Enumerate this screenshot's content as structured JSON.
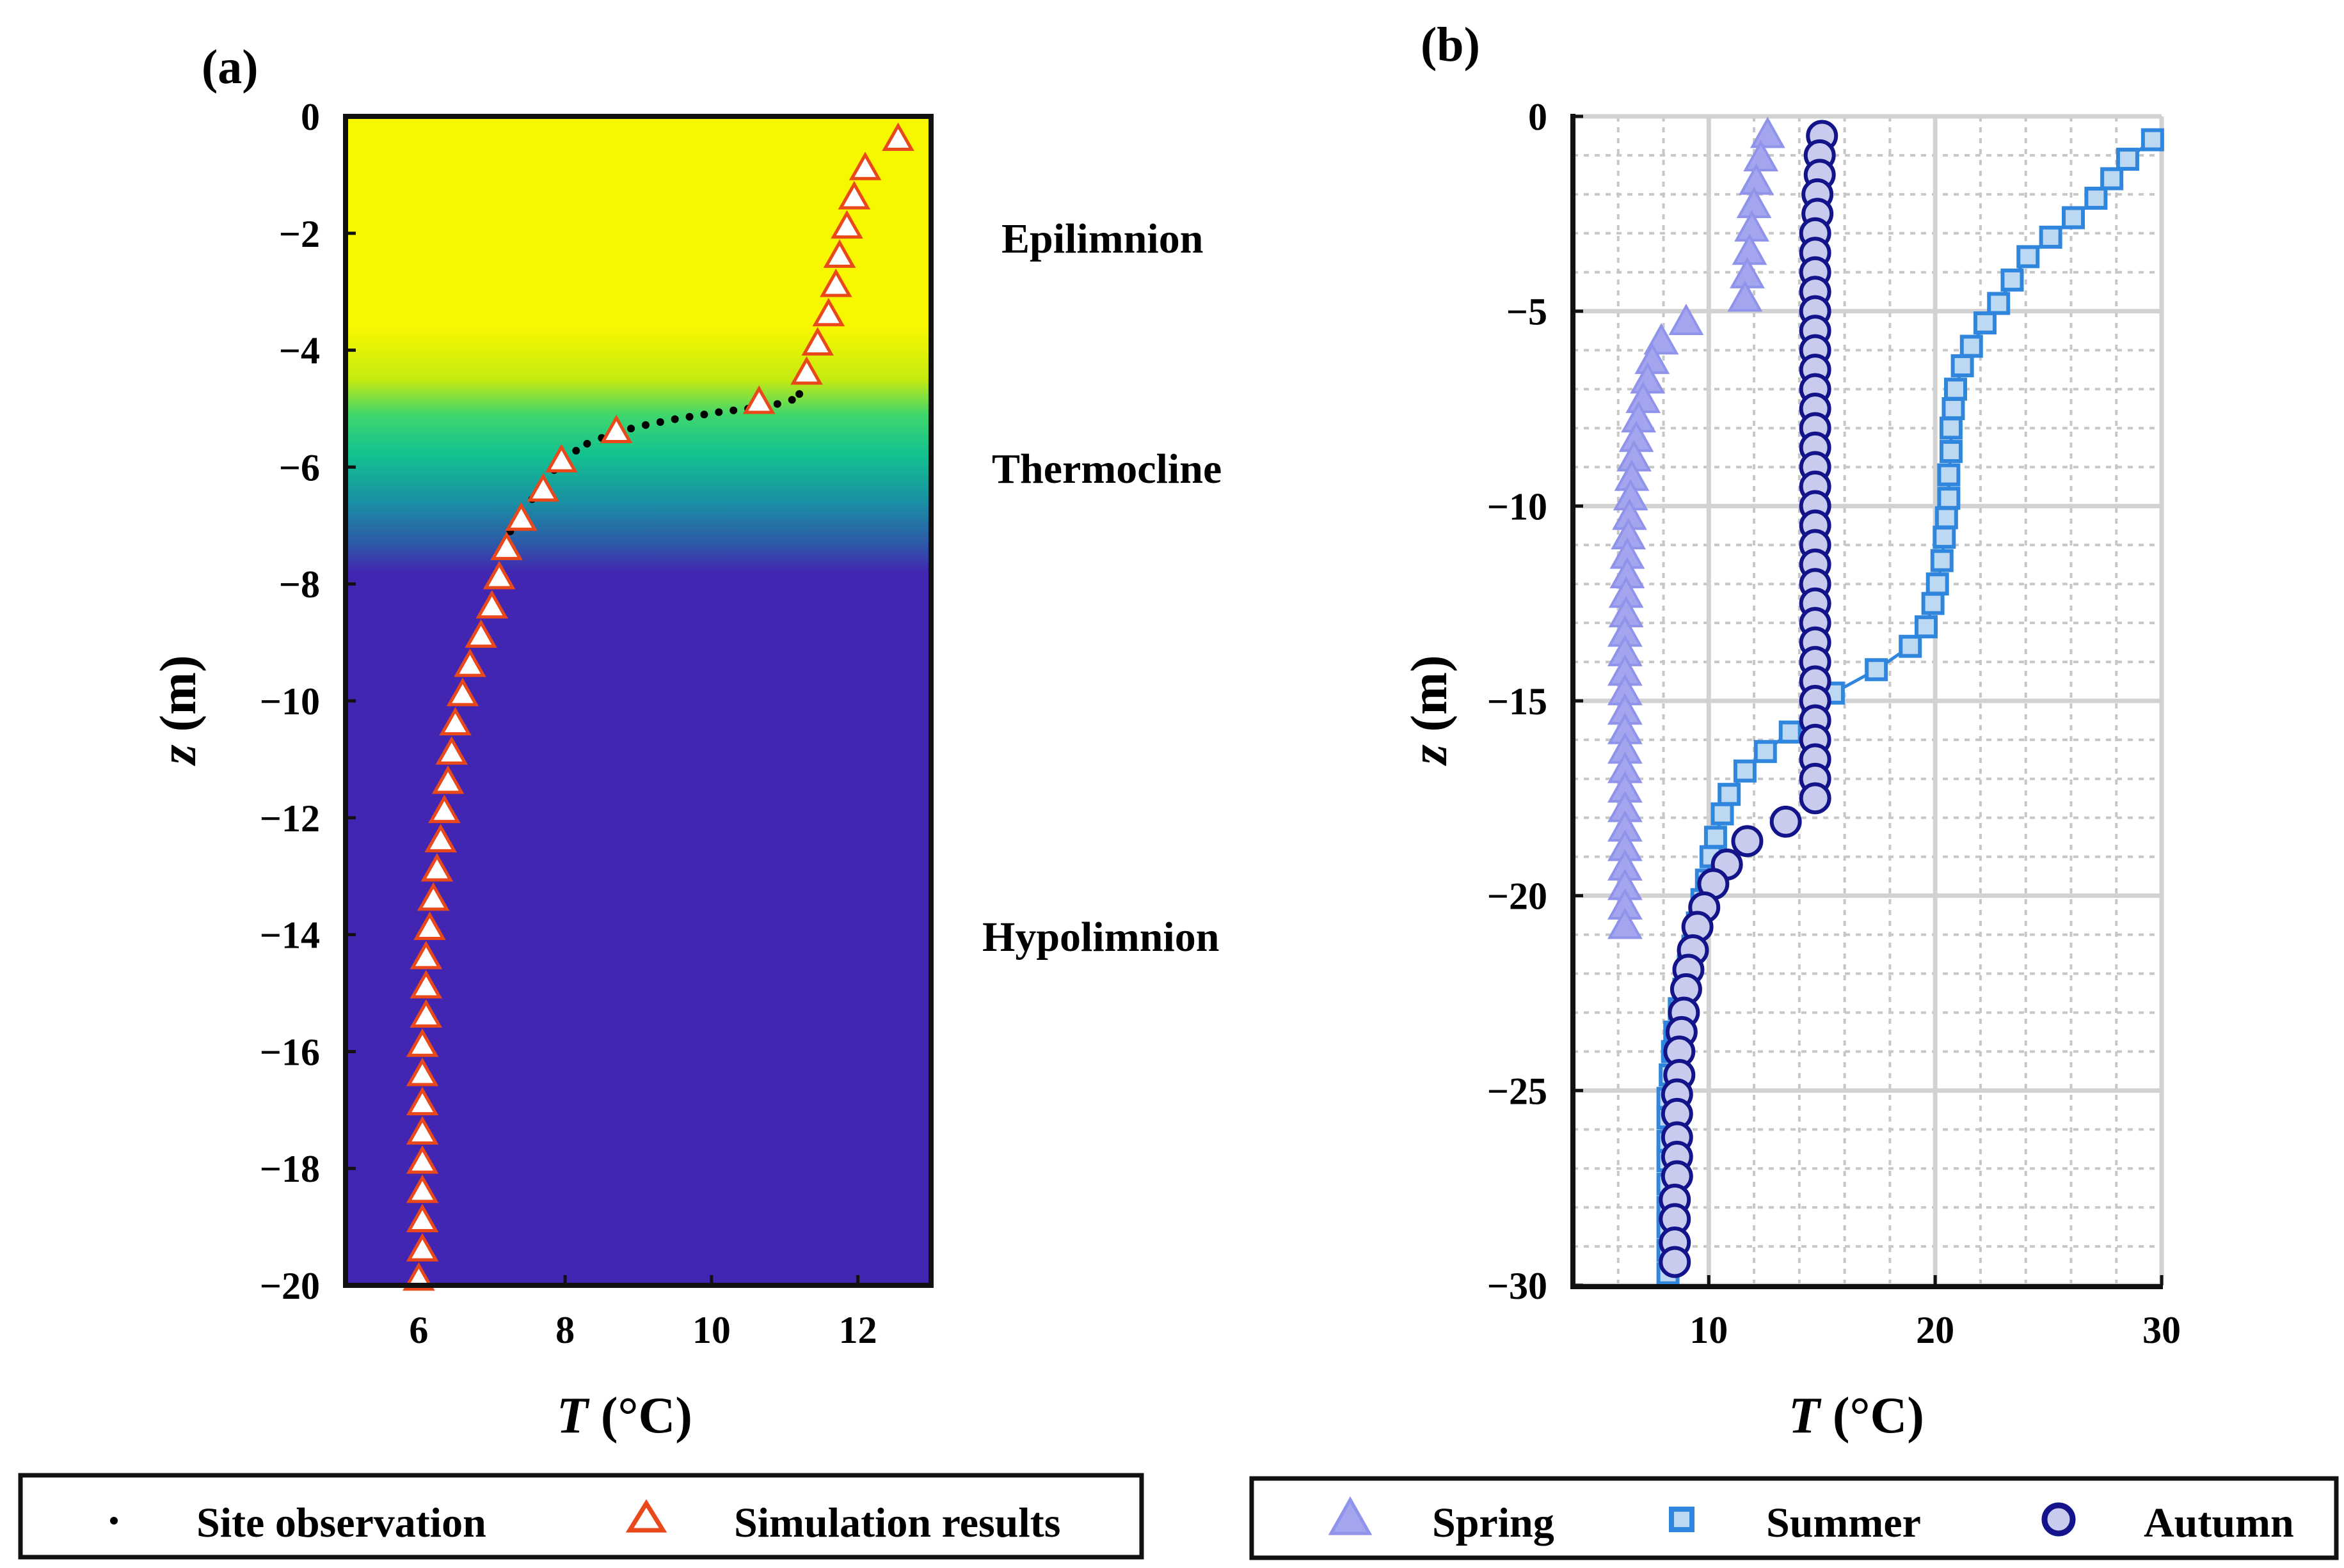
{
  "chart_data": [
    {
      "panel_label": "(a)",
      "type": "scatter",
      "xlabel_var": "T",
      "xlabel_unit": " (°C)",
      "ylabel_var": "z",
      "ylabel_unit": " (m)",
      "xlim": [
        5,
        13
      ],
      "ylim": [
        -20,
        0
      ],
      "xticks": [
        6,
        8,
        10,
        12
      ],
      "yticks": [
        0,
        -2,
        -4,
        -6,
        -8,
        -10,
        -12,
        -14,
        -16,
        -18,
        -20
      ],
      "ytick_labels": [
        "0",
        "−2",
        "−4",
        "−6",
        "−8",
        "−10",
        "−12",
        "−14",
        "−16",
        "−18",
        "−20"
      ],
      "background_layers": [
        {
          "name": "Epilimnion",
          "z_top": 0,
          "z_bottom": -4.5,
          "color": "#f7f700"
        },
        {
          "name": "Thermocline",
          "z_top": -4.5,
          "z_bottom": -7.8,
          "color": "#16c98c"
        },
        {
          "name": "Hypolimnion",
          "z_top": -7.8,
          "z_bottom": -20,
          "color": "#4226b1"
        }
      ],
      "region_labels": [
        "Epilimnion",
        "Thermocline",
        "Hypolimnion"
      ],
      "series": [
        {
          "name": "Site observation",
          "marker": "dot",
          "color": "#000000",
          "points": [
            [
              11.2,
              -4.75
            ],
            [
              11.1,
              -4.85
            ],
            [
              10.9,
              -4.92
            ],
            [
              10.7,
              -4.97
            ],
            [
              10.5,
              -5.0
            ],
            [
              10.3,
              -5.03
            ],
            [
              10.1,
              -5.06
            ],
            [
              9.9,
              -5.1
            ],
            [
              9.7,
              -5.14
            ],
            [
              9.5,
              -5.18
            ],
            [
              9.3,
              -5.23
            ],
            [
              9.1,
              -5.28
            ],
            [
              8.9,
              -5.34
            ],
            [
              8.7,
              -5.42
            ],
            [
              8.5,
              -5.5
            ],
            [
              8.3,
              -5.6
            ],
            [
              8.15,
              -5.72
            ],
            [
              8.0,
              -5.85
            ],
            [
              7.85,
              -6.05
            ],
            [
              7.7,
              -6.3
            ],
            [
              7.55,
              -6.55
            ],
            [
              7.4,
              -6.8
            ],
            [
              7.25,
              -7.1
            ],
            [
              7.15,
              -7.4
            ]
          ]
        },
        {
          "name": "Simulation results",
          "marker": "triangle-open",
          "color": "#e8481a",
          "points": [
            [
              12.55,
              -0.4
            ],
            [
              12.1,
              -0.9
            ],
            [
              11.95,
              -1.4
            ],
            [
              11.85,
              -1.9
            ],
            [
              11.75,
              -2.4
            ],
            [
              11.7,
              -2.9
            ],
            [
              11.6,
              -3.4
            ],
            [
              11.45,
              -3.9
            ],
            [
              11.3,
              -4.4
            ],
            [
              10.65,
              -4.9
            ],
            [
              8.7,
              -5.4
            ],
            [
              7.95,
              -5.9
            ],
            [
              7.7,
              -6.4
            ],
            [
              7.4,
              -6.9
            ],
            [
              7.2,
              -7.4
            ],
            [
              7.1,
              -7.9
            ],
            [
              7.0,
              -8.4
            ],
            [
              6.85,
              -8.9
            ],
            [
              6.7,
              -9.4
            ],
            [
              6.6,
              -9.9
            ],
            [
              6.5,
              -10.4
            ],
            [
              6.45,
              -10.9
            ],
            [
              6.4,
              -11.4
            ],
            [
              6.35,
              -11.9
            ],
            [
              6.3,
              -12.4
            ],
            [
              6.25,
              -12.9
            ],
            [
              6.2,
              -13.4
            ],
            [
              6.15,
              -13.9
            ],
            [
              6.1,
              -14.4
            ],
            [
              6.1,
              -14.9
            ],
            [
              6.1,
              -15.4
            ],
            [
              6.05,
              -15.9
            ],
            [
              6.05,
              -16.4
            ],
            [
              6.05,
              -16.9
            ],
            [
              6.05,
              -17.4
            ],
            [
              6.05,
              -17.9
            ],
            [
              6.05,
              -18.4
            ],
            [
              6.05,
              -18.9
            ],
            [
              6.05,
              -19.4
            ],
            [
              6.0,
              -19.9
            ]
          ]
        }
      ]
    },
    {
      "panel_label": "(b)",
      "type": "scatter",
      "xlabel_var": "T",
      "xlabel_unit": " (°C)",
      "ylabel_var": "z",
      "ylabel_unit": " (m)",
      "xlim": [
        4,
        30
      ],
      "ylim": [
        -30,
        0
      ],
      "xticks": [
        10,
        20,
        30
      ],
      "yticks": [
        0,
        -5,
        -10,
        -15,
        -20,
        -25,
        -30
      ],
      "ytick_labels": [
        "0",
        "−5",
        "−10",
        "−15",
        "−20",
        "−25",
        "−30"
      ],
      "grid": true,
      "series": [
        {
          "name": "Spring",
          "marker": "triangle-filled",
          "color": "#a3a6ee",
          "line": false,
          "points": [
            [
              12.6,
              -0.5
            ],
            [
              12.3,
              -1.1
            ],
            [
              12.1,
              -1.7
            ],
            [
              12.0,
              -2.3
            ],
            [
              11.9,
              -2.9
            ],
            [
              11.8,
              -3.5
            ],
            [
              11.7,
              -4.1
            ],
            [
              11.6,
              -4.7
            ],
            [
              9.0,
              -5.3
            ],
            [
              7.9,
              -5.8
            ],
            [
              7.5,
              -6.3
            ],
            [
              7.3,
              -6.8
            ],
            [
              7.1,
              -7.3
            ],
            [
              6.9,
              -7.8
            ],
            [
              6.8,
              -8.3
            ],
            [
              6.7,
              -8.8
            ],
            [
              6.6,
              -9.3
            ],
            [
              6.55,
              -9.8
            ],
            [
              6.5,
              -10.3
            ],
            [
              6.45,
              -10.8
            ],
            [
              6.4,
              -11.3
            ],
            [
              6.4,
              -11.8
            ],
            [
              6.35,
              -12.3
            ],
            [
              6.35,
              -12.8
            ],
            [
              6.3,
              -13.3
            ],
            [
              6.3,
              -13.8
            ],
            [
              6.3,
              -14.3
            ],
            [
              6.3,
              -14.8
            ],
            [
              6.3,
              -15.3
            ],
            [
              6.3,
              -15.8
            ],
            [
              6.3,
              -16.3
            ],
            [
              6.3,
              -16.8
            ],
            [
              6.3,
              -17.3
            ],
            [
              6.3,
              -17.8
            ],
            [
              6.3,
              -18.3
            ],
            [
              6.3,
              -18.8
            ],
            [
              6.3,
              -19.3
            ],
            [
              6.3,
              -19.8
            ],
            [
              6.3,
              -20.3
            ],
            [
              6.3,
              -20.8
            ]
          ]
        },
        {
          "name": "Summer",
          "marker": "square",
          "color": "#2f86dc",
          "fill": "#bcd8f3",
          "line": true,
          "points": [
            [
              29.6,
              -0.6
            ],
            [
              28.5,
              -1.1
            ],
            [
              27.8,
              -1.6
            ],
            [
              27.1,
              -2.1
            ],
            [
              26.1,
              -2.6
            ],
            [
              25.1,
              -3.1
            ],
            [
              24.1,
              -3.6
            ],
            [
              23.4,
              -4.2
            ],
            [
              22.8,
              -4.8
            ],
            [
              22.2,
              -5.3
            ],
            [
              21.6,
              -5.9
            ],
            [
              21.2,
              -6.4
            ],
            [
              20.9,
              -7.0
            ],
            [
              20.8,
              -7.5
            ],
            [
              20.7,
              -8.0
            ],
            [
              20.7,
              -8.6
            ],
            [
              20.6,
              -9.2
            ],
            [
              20.6,
              -9.8
            ],
            [
              20.5,
              -10.3
            ],
            [
              20.4,
              -10.8
            ],
            [
              20.3,
              -11.4
            ],
            [
              20.1,
              -12.0
            ],
            [
              19.9,
              -12.5
            ],
            [
              19.6,
              -13.1
            ],
            [
              18.9,
              -13.6
            ],
            [
              17.4,
              -14.2
            ],
            [
              15.5,
              -14.8
            ],
            [
              14.6,
              -15.3
            ],
            [
              13.6,
              -15.8
            ],
            [
              12.5,
              -16.3
            ],
            [
              11.6,
              -16.8
            ],
            [
              10.9,
              -17.4
            ],
            [
              10.6,
              -17.9
            ],
            [
              10.3,
              -18.5
            ],
            [
              10.1,
              -19.0
            ],
            [
              9.9,
              -19.6
            ],
            [
              9.7,
              -20.1
            ],
            [
              9.5,
              -20.7
            ],
            [
              9.3,
              -21.3
            ],
            [
              9.1,
              -21.8
            ],
            [
              8.9,
              -22.4
            ],
            [
              8.7,
              -22.9
            ],
            [
              8.5,
              -23.5
            ],
            [
              8.4,
              -24.0
            ],
            [
              8.3,
              -24.6
            ],
            [
              8.2,
              -25.2
            ],
            [
              8.2,
              -25.7
            ],
            [
              8.2,
              -26.3
            ],
            [
              8.2,
              -26.8
            ],
            [
              8.2,
              -27.4
            ],
            [
              8.2,
              -28.0
            ],
            [
              8.2,
              -28.5
            ],
            [
              8.2,
              -29.1
            ],
            [
              8.2,
              -29.7
            ]
          ]
        },
        {
          "name": "Autumn",
          "marker": "circle",
          "color": "#14148a",
          "fill": "#c9cbee",
          "line": false,
          "points": [
            [
              15.0,
              -0.5
            ],
            [
              14.9,
              -1.0
            ],
            [
              14.9,
              -1.5
            ],
            [
              14.8,
              -2.0
            ],
            [
              14.8,
              -2.5
            ],
            [
              14.7,
              -3.0
            ],
            [
              14.7,
              -3.5
            ],
            [
              14.7,
              -4.0
            ],
            [
              14.7,
              -4.5
            ],
            [
              14.7,
              -5.0
            ],
            [
              14.7,
              -5.5
            ],
            [
              14.7,
              -6.0
            ],
            [
              14.7,
              -6.5
            ],
            [
              14.7,
              -7.0
            ],
            [
              14.7,
              -7.5
            ],
            [
              14.7,
              -8.0
            ],
            [
              14.7,
              -8.5
            ],
            [
              14.7,
              -9.0
            ],
            [
              14.7,
              -9.5
            ],
            [
              14.7,
              -10.0
            ],
            [
              14.7,
              -10.5
            ],
            [
              14.7,
              -11.0
            ],
            [
              14.7,
              -11.5
            ],
            [
              14.7,
              -12.0
            ],
            [
              14.7,
              -12.5
            ],
            [
              14.7,
              -13.0
            ],
            [
              14.7,
              -13.5
            ],
            [
              14.7,
              -14.0
            ],
            [
              14.7,
              -14.5
            ],
            [
              14.7,
              -15.0
            ],
            [
              14.7,
              -15.5
            ],
            [
              14.7,
              -16.0
            ],
            [
              14.7,
              -16.5
            ],
            [
              14.7,
              -17.0
            ],
            [
              14.7,
              -17.5
            ],
            [
              13.4,
              -18.1
            ],
            [
              11.7,
              -18.6
            ],
            [
              10.8,
              -19.2
            ],
            [
              10.2,
              -19.7
            ],
            [
              9.8,
              -20.3
            ],
            [
              9.5,
              -20.8
            ],
            [
              9.3,
              -21.4
            ],
            [
              9.1,
              -21.9
            ],
            [
              9.0,
              -22.4
            ],
            [
              8.9,
              -23.0
            ],
            [
              8.8,
              -23.5
            ],
            [
              8.7,
              -24.0
            ],
            [
              8.7,
              -24.6
            ],
            [
              8.6,
              -25.1
            ],
            [
              8.6,
              -25.6
            ],
            [
              8.6,
              -26.2
            ],
            [
              8.6,
              -26.7
            ],
            [
              8.6,
              -27.2
            ],
            [
              8.5,
              -27.8
            ],
            [
              8.5,
              -28.3
            ],
            [
              8.5,
              -28.9
            ],
            [
              8.5,
              -29.4
            ]
          ]
        }
      ]
    }
  ],
  "legends": [
    {
      "items": [
        {
          "label": "Site observation"
        },
        {
          "label": "Simulation results"
        }
      ]
    },
    {
      "items": [
        {
          "label": "Spring"
        },
        {
          "label": "Summer"
        },
        {
          "label": "Autumn"
        }
      ]
    }
  ]
}
